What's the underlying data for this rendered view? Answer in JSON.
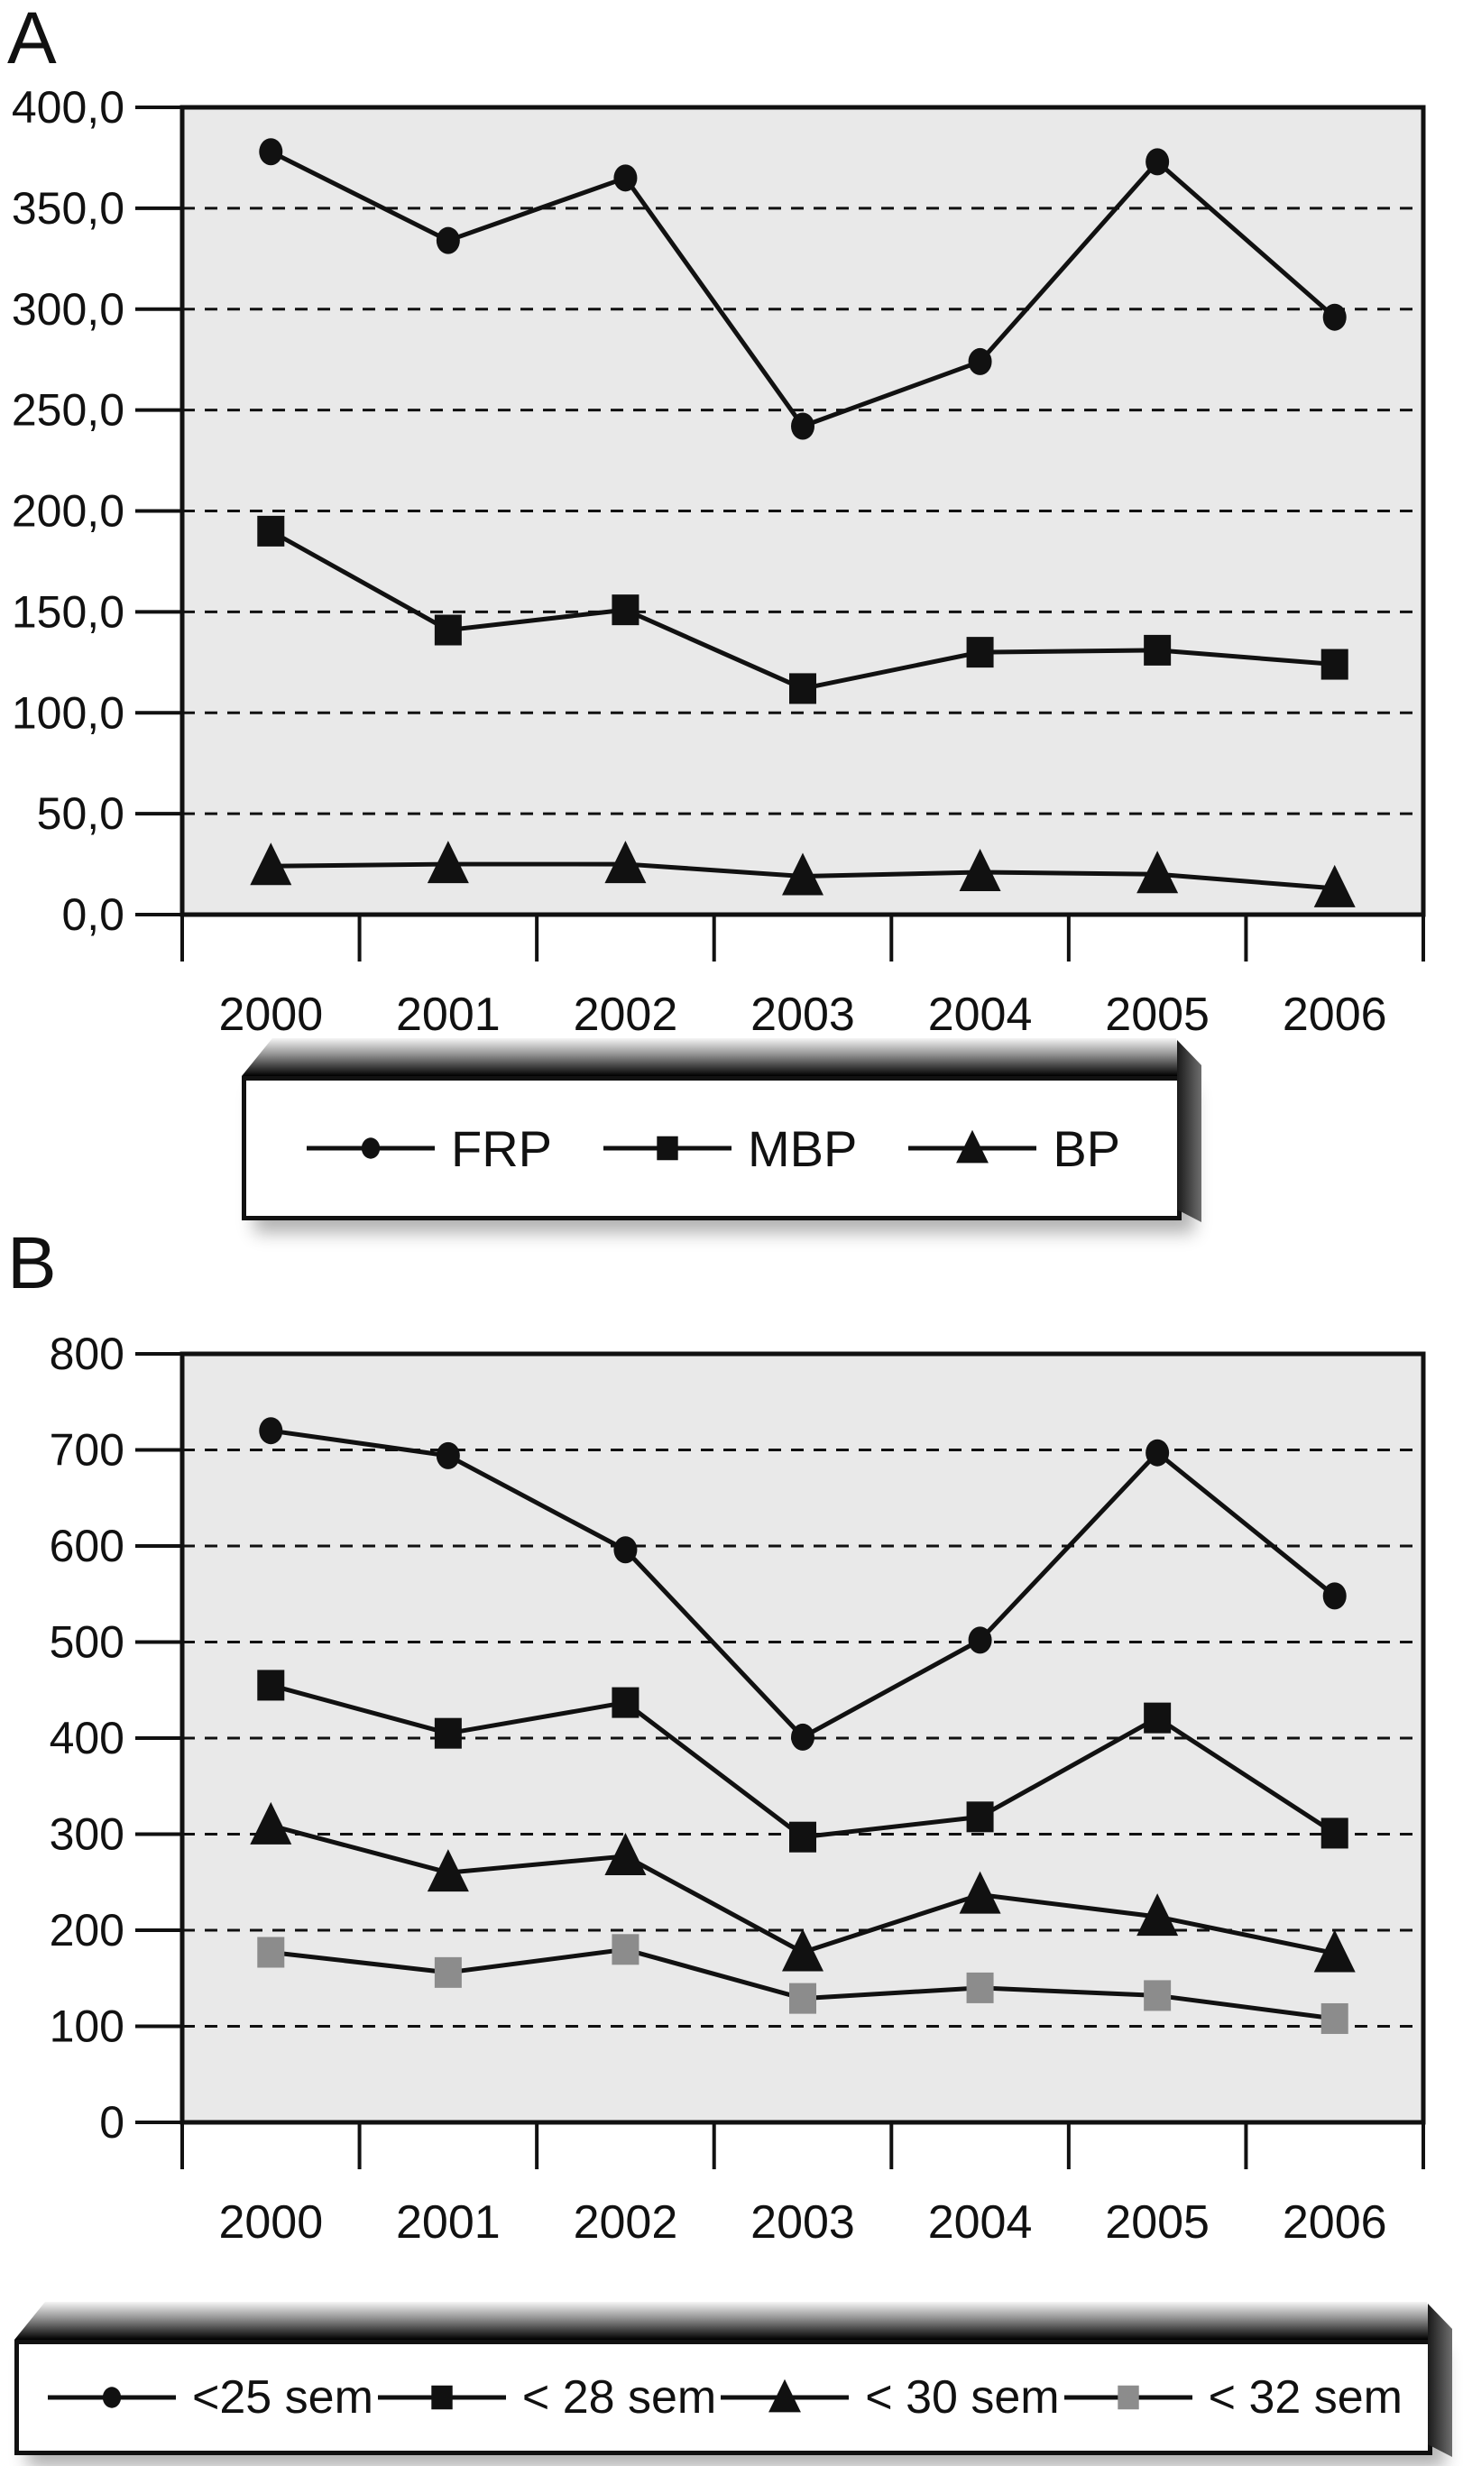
{
  "figure": {
    "panel_a_label": "A",
    "panel_b_label": "B"
  },
  "colors": {
    "plot_bg": "#e9e9e9",
    "line": "#111111",
    "text": "#111111",
    "gray_marker": "#8c8c8c",
    "legend_bg": "#ffffff"
  },
  "chart_data": [
    {
      "type": "line",
      "panel": "A",
      "title": "",
      "xlabel": "",
      "ylabel": "",
      "grid": "horizontal-dashed",
      "legend_position": "below",
      "ylim": [
        0,
        400
      ],
      "ytick_labels": [
        "400,0",
        "350,0",
        "300,0",
        "250,0",
        "200,0",
        "150,0",
        "100,0",
        "50,0",
        "0,0"
      ],
      "categories": [
        "2000",
        "2001",
        "2002",
        "2003",
        "2004",
        "2005",
        "2006"
      ],
      "series": [
        {
          "name": "FRP",
          "marker": "circle",
          "color": "#111111",
          "values": [
            378,
            334,
            365,
            242,
            274,
            373,
            296
          ]
        },
        {
          "name": "MBP",
          "marker": "square",
          "color": "#111111",
          "values": [
            190,
            141,
            151,
            112,
            130,
            131,
            124
          ]
        },
        {
          "name": "BP",
          "marker": "triangle",
          "color": "#111111",
          "values": [
            24,
            25,
            25,
            19,
            21,
            20,
            13
          ]
        }
      ]
    },
    {
      "type": "line",
      "panel": "B",
      "title": "",
      "xlabel": "",
      "ylabel": "",
      "grid": "horizontal-dashed",
      "legend_position": "below",
      "ylim": [
        0,
        800
      ],
      "ytick_labels": [
        "800",
        "700",
        "600",
        "500",
        "400",
        "300",
        "200",
        "100",
        "0"
      ],
      "categories": [
        "2000",
        "2001",
        "2002",
        "2003",
        "2004",
        "2005",
        "2006"
      ],
      "series": [
        {
          "name": "<25 sem",
          "marker": "circle",
          "color": "#111111",
          "values": [
            720,
            694,
            596,
            401,
            502,
            697,
            548
          ]
        },
        {
          "name": "< 28 sem",
          "marker": "square",
          "color": "#111111",
          "values": [
            455,
            405,
            437,
            297,
            318,
            421,
            301
          ]
        },
        {
          "name": "< 30 sem",
          "marker": "triangle",
          "color": "#111111",
          "values": [
            309,
            260,
            277,
            177,
            237,
            214,
            176
          ]
        },
        {
          "name": "< 32 sem",
          "marker": "square",
          "color": "#8c8c8c",
          "values": [
            177,
            156,
            180,
            129,
            140,
            132,
            108
          ]
        }
      ]
    }
  ]
}
